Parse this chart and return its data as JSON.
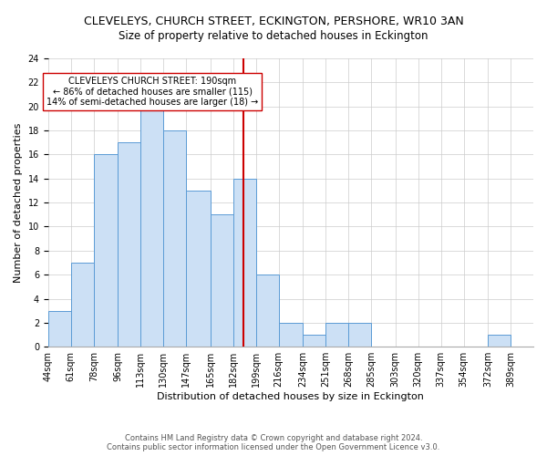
{
  "title": "CLEVELEYS, CHURCH STREET, ECKINGTON, PERSHORE, WR10 3AN",
  "subtitle": "Size of property relative to detached houses in Eckington",
  "xlabel": "Distribution of detached houses by size in Eckington",
  "ylabel": "Number of detached properties",
  "bin_labels": [
    "44sqm",
    "61sqm",
    "78sqm",
    "96sqm",
    "113sqm",
    "130sqm",
    "147sqm",
    "165sqm",
    "182sqm",
    "199sqm",
    "216sqm",
    "234sqm",
    "251sqm",
    "268sqm",
    "285sqm",
    "303sqm",
    "320sqm",
    "337sqm",
    "354sqm",
    "372sqm",
    "389sqm"
  ],
  "bin_edges": [
    44,
    61,
    78,
    96,
    113,
    130,
    147,
    165,
    182,
    199,
    216,
    234,
    251,
    268,
    285,
    303,
    320,
    337,
    354,
    372,
    389,
    406
  ],
  "counts": [
    3,
    7,
    16,
    17,
    20,
    18,
    13,
    11,
    14,
    6,
    2,
    1,
    2,
    2,
    0,
    0,
    0,
    0,
    0,
    1,
    0
  ],
  "bar_facecolor": "#cce0f5",
  "bar_edgecolor": "#5b9bd5",
  "ref_line_x": 190,
  "ref_line_color": "#cc0000",
  "annotation_text": "CLEVELEYS CHURCH STREET: 190sqm\n← 86% of detached houses are smaller (115)\n14% of semi-detached houses are larger (18) →",
  "annotation_box_facecolor": "#ffffff",
  "annotation_box_edgecolor": "#cc0000",
  "ylim": [
    0,
    24
  ],
  "yticks": [
    0,
    2,
    4,
    6,
    8,
    10,
    12,
    14,
    16,
    18,
    20,
    22,
    24
  ],
  "footer_line1": "Contains HM Land Registry data © Crown copyright and database right 2024.",
  "footer_line2": "Contains public sector information licensed under the Open Government Licence v3.0.",
  "background_color": "#ffffff",
  "grid_color": "#cccccc",
  "title_fontsize": 9,
  "subtitle_fontsize": 8.5,
  "label_fontsize": 8,
  "tick_fontsize": 7,
  "annotation_fontsize": 7,
  "footer_fontsize": 6
}
